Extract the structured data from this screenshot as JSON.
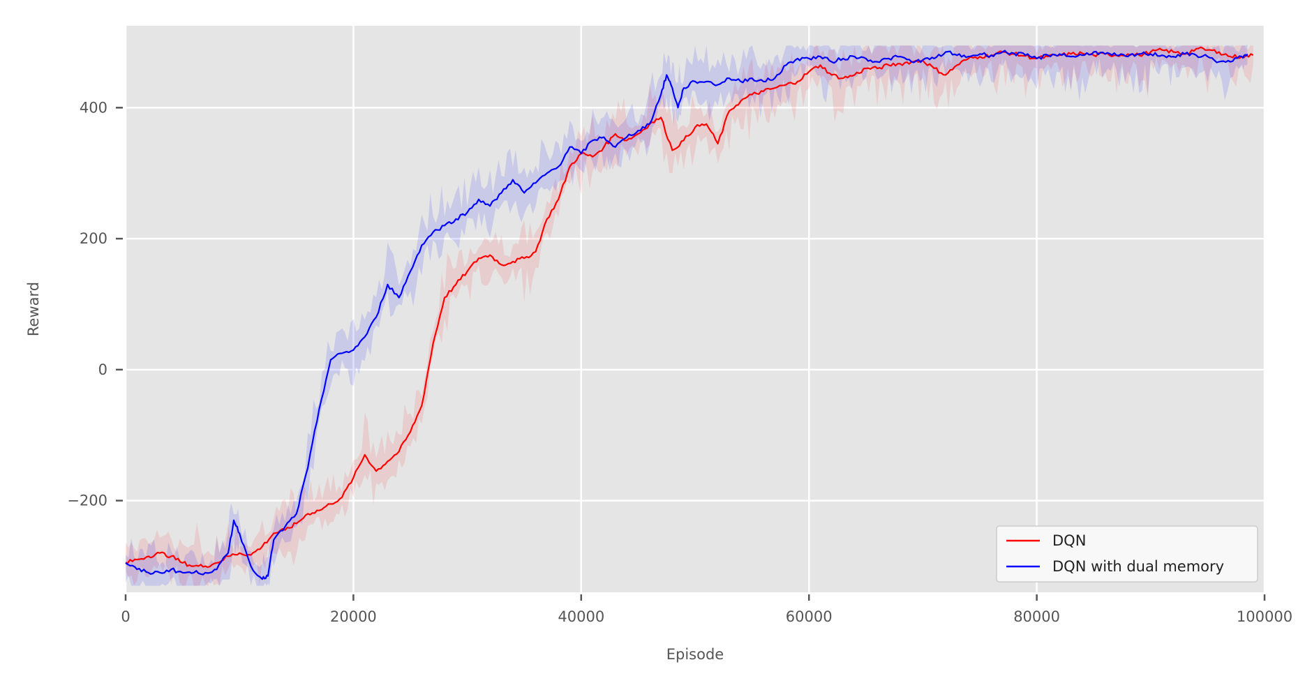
{
  "chart_data": {
    "type": "line",
    "title": "",
    "xlabel": "Episode",
    "ylabel": "Reward",
    "xlim": [
      0,
      100000
    ],
    "ylim": [
      -340,
      525
    ],
    "xticks": [
      0,
      20000,
      40000,
      60000,
      80000,
      100000
    ],
    "yticks": [
      -200,
      0,
      200,
      400
    ],
    "grid": true,
    "legend": "bottom-right",
    "background": "#e5e5e5",
    "series": [
      {
        "name": "DQN",
        "color": "#ff0000",
        "x": [
          0,
          1000,
          2000,
          3000,
          4000,
          5000,
          6000,
          7000,
          8000,
          9000,
          10000,
          11000,
          12000,
          13000,
          14000,
          15000,
          16000,
          17000,
          18000,
          19000,
          20000,
          21000,
          22000,
          23000,
          24000,
          25000,
          26000,
          27000,
          28000,
          29000,
          30000,
          31000,
          32000,
          33000,
          34000,
          35000,
          36000,
          37000,
          38000,
          39000,
          40000,
          41000,
          42000,
          43000,
          44000,
          45000,
          46000,
          47000,
          48000,
          49000,
          50000,
          51000,
          52000,
          53000,
          54000,
          55000,
          56000,
          57000,
          58000,
          59000,
          60000,
          61000,
          62000,
          63000,
          64000,
          65000,
          66000,
          67000,
          68000,
          69000,
          70000,
          71000,
          72000,
          73000,
          74000,
          75000,
          76000,
          77000,
          78000,
          79000,
          80000,
          81000,
          82000,
          83000,
          84000,
          85000,
          86000,
          87000,
          88000,
          89000,
          90000,
          91000,
          92000,
          93000,
          94000,
          95000,
          96000,
          97000,
          98000,
          99000
        ],
        "values": [
          -295,
          -290,
          -285,
          -280,
          -285,
          -295,
          -300,
          -300,
          -295,
          -285,
          -280,
          -283,
          -270,
          -250,
          -245,
          -235,
          -220,
          -215,
          -205,
          -195,
          -165,
          -130,
          -155,
          -140,
          -125,
          -95,
          -55,
          40,
          110,
          130,
          150,
          170,
          175,
          160,
          165,
          170,
          180,
          230,
          260,
          310,
          330,
          325,
          340,
          360,
          350,
          360,
          375,
          385,
          335,
          350,
          370,
          375,
          345,
          395,
          410,
          420,
          425,
          430,
          435,
          440,
          455,
          465,
          450,
          445,
          450,
          460,
          460,
          465,
          467,
          470,
          472,
          460,
          450,
          465,
          475,
          478,
          480,
          485,
          482,
          479,
          475,
          478,
          480,
          482,
          483,
          480,
          482,
          480,
          482,
          480,
          485,
          488,
          485,
          482,
          490,
          488,
          485,
          478,
          478,
          480
        ]
      },
      {
        "name": "DQN with dual memory",
        "color": "#0000ff",
        "x": [
          0,
          1000,
          2000,
          3000,
          4000,
          5000,
          6000,
          7000,
          8000,
          9000,
          9500,
          10000,
          11000,
          12000,
          12500,
          13000,
          14000,
          15000,
          16000,
          17000,
          18000,
          19000,
          20000,
          21000,
          22000,
          23000,
          24000,
          25000,
          26000,
          27000,
          28000,
          29000,
          30000,
          31000,
          32000,
          33000,
          34000,
          35000,
          36000,
          37000,
          38000,
          39000,
          40000,
          41000,
          42000,
          43000,
          44000,
          45000,
          46000,
          47000,
          47500,
          48000,
          48500,
          49000,
          50000,
          51000,
          52000,
          53000,
          54000,
          55000,
          56000,
          57000,
          58000,
          59000,
          60000,
          61000,
          62000,
          63000,
          64000,
          65000,
          66000,
          67000,
          68000,
          69000,
          70000,
          71000,
          72000,
          73000,
          74000,
          75000,
          76000,
          77000,
          78000,
          79000,
          80000,
          81000,
          82000,
          83000,
          84000,
          85000,
          86000,
          87000,
          88000,
          89000,
          90000,
          91000,
          92000,
          93000,
          94000,
          95000,
          96000,
          97000,
          98000,
          98500
        ],
        "values": [
          -295,
          -305,
          -310,
          -310,
          -305,
          -310,
          -310,
          -310,
          -305,
          -280,
          -230,
          -250,
          -300,
          -320,
          -315,
          -260,
          -240,
          -220,
          -150,
          -60,
          15,
          25,
          30,
          50,
          80,
          130,
          110,
          150,
          190,
          210,
          220,
          230,
          240,
          260,
          250,
          270,
          290,
          270,
          285,
          300,
          310,
          340,
          330,
          350,
          355,
          340,
          355,
          365,
          375,
          420,
          450,
          430,
          400,
          430,
          440,
          440,
          435,
          445,
          440,
          445,
          440,
          445,
          465,
          475,
          475,
          478,
          470,
          475,
          478,
          475,
          470,
          475,
          478,
          470,
          473,
          475,
          485,
          480,
          478,
          482,
          480,
          485,
          483,
          480,
          475,
          480,
          482,
          478,
          480,
          485,
          482,
          480,
          478,
          482,
          482,
          480,
          478,
          482,
          480,
          478,
          470,
          470,
          478,
          482
        ]
      }
    ]
  }
}
